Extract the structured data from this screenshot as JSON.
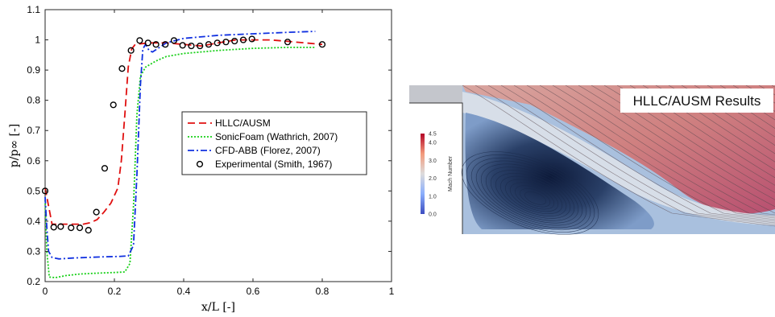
{
  "chart_data": {
    "type": "line",
    "title": "",
    "xlabel": "x/L [-]",
    "ylabel": "p/p∞ [-]",
    "xlim": [
      0,
      1
    ],
    "ylim": [
      0.2,
      1.1
    ],
    "xticks": [
      "0",
      "0.2",
      "0.4",
      "0.6",
      "0.8",
      "1"
    ],
    "yticks": [
      "0.2",
      "0.3",
      "0.4",
      "0.5",
      "0.6",
      "0.7",
      "0.8",
      "0.9",
      "1",
      "1.1"
    ],
    "grid": false,
    "legend_position": "center-right",
    "series": [
      {
        "name": "HLLC/AUSM",
        "style": "dashed",
        "color": "#e01010",
        "points": [
          [
            0.0,
            0.51
          ],
          [
            0.01,
            0.45
          ],
          [
            0.02,
            0.39
          ],
          [
            0.05,
            0.39
          ],
          [
            0.08,
            0.39
          ],
          [
            0.11,
            0.39
          ],
          [
            0.13,
            0.395
          ],
          [
            0.15,
            0.405
          ],
          [
            0.17,
            0.43
          ],
          [
            0.19,
            0.46
          ],
          [
            0.21,
            0.51
          ],
          [
            0.22,
            0.6
          ],
          [
            0.23,
            0.75
          ],
          [
            0.24,
            0.91
          ],
          [
            0.25,
            0.97
          ],
          [
            0.26,
            0.985
          ],
          [
            0.3,
            0.99
          ],
          [
            0.35,
            0.99
          ],
          [
            0.4,
            0.985
          ],
          [
            0.45,
            0.98
          ],
          [
            0.5,
            0.99
          ],
          [
            0.55,
            1.0
          ],
          [
            0.6,
            1.0
          ],
          [
            0.65,
            1.0
          ],
          [
            0.7,
            0.995
          ],
          [
            0.75,
            0.99
          ],
          [
            0.8,
            0.985
          ]
        ]
      },
      {
        "name": "SonicFoam (Wathrich, 2007)",
        "style": "dotted",
        "color": "#18d018",
        "points": [
          [
            0.0,
            0.47
          ],
          [
            0.005,
            0.3
          ],
          [
            0.012,
            0.215
          ],
          [
            0.03,
            0.213
          ],
          [
            0.06,
            0.22
          ],
          [
            0.1,
            0.225
          ],
          [
            0.15,
            0.228
          ],
          [
            0.2,
            0.23
          ],
          [
            0.23,
            0.232
          ],
          [
            0.245,
            0.26
          ],
          [
            0.255,
            0.45
          ],
          [
            0.265,
            0.75
          ],
          [
            0.275,
            0.88
          ],
          [
            0.29,
            0.91
          ],
          [
            0.32,
            0.93
          ],
          [
            0.35,
            0.945
          ],
          [
            0.4,
            0.955
          ],
          [
            0.5,
            0.965
          ],
          [
            0.6,
            0.972
          ],
          [
            0.7,
            0.975
          ],
          [
            0.78,
            0.975
          ]
        ]
      },
      {
        "name": "CFD-ABB (Florez, 2007)",
        "style": "dashdot",
        "color": "#1030e0",
        "points": [
          [
            0.0,
            0.48
          ],
          [
            0.005,
            0.38
          ],
          [
            0.01,
            0.3
          ],
          [
            0.02,
            0.28
          ],
          [
            0.04,
            0.275
          ],
          [
            0.08,
            0.278
          ],
          [
            0.12,
            0.28
          ],
          [
            0.17,
            0.282
          ],
          [
            0.21,
            0.283
          ],
          [
            0.24,
            0.285
          ],
          [
            0.255,
            0.32
          ],
          [
            0.265,
            0.55
          ],
          [
            0.275,
            0.85
          ],
          [
            0.282,
            0.97
          ],
          [
            0.29,
            0.985
          ],
          [
            0.3,
            0.965
          ],
          [
            0.31,
            0.96
          ],
          [
            0.33,
            0.975
          ],
          [
            0.35,
            0.99
          ],
          [
            0.4,
            1.005
          ],
          [
            0.5,
            1.015
          ],
          [
            0.6,
            1.02
          ],
          [
            0.7,
            1.025
          ],
          [
            0.78,
            1.028
          ]
        ]
      },
      {
        "name": "Experimental (Smith, 1967)",
        "style": "markers",
        "color": "#000000",
        "points": [
          [
            0.0,
            0.5
          ],
          [
            0.025,
            0.38
          ],
          [
            0.045,
            0.382
          ],
          [
            0.075,
            0.378
          ],
          [
            0.1,
            0.378
          ],
          [
            0.125,
            0.37
          ],
          [
            0.148,
            0.43
          ],
          [
            0.172,
            0.575
          ],
          [
            0.197,
            0.785
          ],
          [
            0.222,
            0.905
          ],
          [
            0.248,
            0.965
          ],
          [
            0.273,
            0.998
          ],
          [
            0.297,
            0.99
          ],
          [
            0.32,
            0.985
          ],
          [
            0.347,
            0.985
          ],
          [
            0.372,
            0.998
          ],
          [
            0.397,
            0.982
          ],
          [
            0.422,
            0.98
          ],
          [
            0.447,
            0.98
          ],
          [
            0.472,
            0.985
          ],
          [
            0.497,
            0.99
          ],
          [
            0.522,
            0.993
          ],
          [
            0.547,
            0.996
          ],
          [
            0.572,
            1.0
          ],
          [
            0.597,
            1.003
          ],
          [
            0.7,
            0.993
          ],
          [
            0.8,
            0.985
          ]
        ]
      }
    ]
  },
  "cfd_image": {
    "title": "HLLC/AUSM Results",
    "colorbar_label": "Mach Number",
    "colorbar_ticks": [
      "4.5",
      "4.0",
      "3.0",
      "2.0",
      "1.0",
      "0.0"
    ]
  }
}
